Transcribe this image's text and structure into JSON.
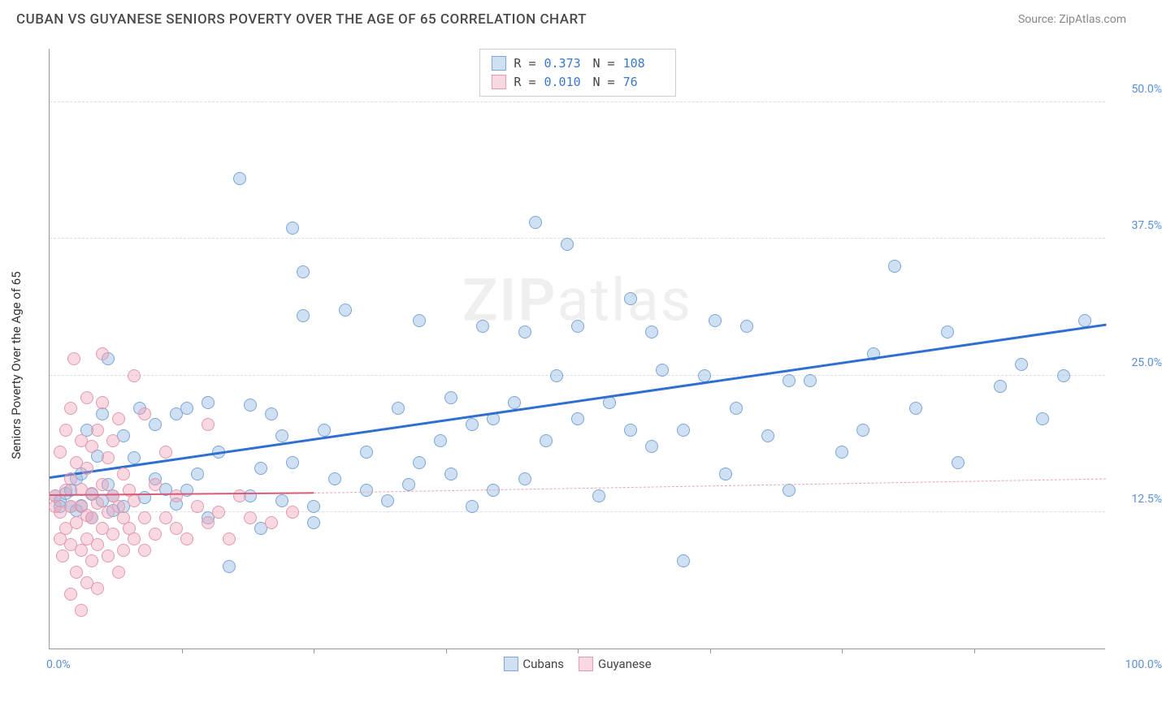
{
  "title": "CUBAN VS GUYANESE SENIORS POVERTY OVER THE AGE OF 65 CORRELATION CHART",
  "source_label": "Source: ZipAtlas.com",
  "ylabel": "Seniors Poverty Over the Age of 65",
  "watermark": {
    "bold": "ZIP",
    "rest": "atlas"
  },
  "chart": {
    "type": "scatter",
    "background_color": "#ffffff",
    "grid_color": "#dddddd",
    "axis_color": "#999999",
    "xlim": [
      0,
      100
    ],
    "ylim": [
      0,
      55
    ],
    "yticks": [
      {
        "v": 12.5,
        "label": "12.5%"
      },
      {
        "v": 25.0,
        "label": "25.0%"
      },
      {
        "v": 37.5,
        "label": "37.5%"
      },
      {
        "v": 50.0,
        "label": "50.0%"
      }
    ],
    "xticks": [
      {
        "v": 0,
        "label": "0.0%"
      },
      {
        "v": 100,
        "label": "100.0%"
      }
    ],
    "xtick_marks": [
      12.5,
      25,
      37.5,
      50,
      62.5,
      75,
      87.5
    ],
    "marker_radius": 8,
    "marker_border_width": 1.5,
    "series": [
      {
        "name": "Cubans",
        "fill": "rgba(151,187,229,0.45)",
        "stroke": "#7aa6d8",
        "R": "0.373",
        "N": "108",
        "trend": {
          "x1": 0,
          "y1": 15.5,
          "x2": 100,
          "y2": 29.5,
          "color": "#2f6fd0",
          "width": 3,
          "dash": false
        },
        "points": [
          [
            0.5,
            14
          ],
          [
            1,
            13.5
          ],
          [
            1,
            13
          ],
          [
            1.5,
            14.2
          ],
          [
            2,
            13
          ],
          [
            2,
            14.5
          ],
          [
            2.5,
            12.6
          ],
          [
            2.5,
            15.5
          ],
          [
            3,
            13.1
          ],
          [
            3,
            16.0
          ],
          [
            3.5,
            20.0
          ],
          [
            4,
            14.1
          ],
          [
            4,
            12.0
          ],
          [
            4.5,
            17.6
          ],
          [
            5,
            13.5
          ],
          [
            5,
            21.5
          ],
          [
            5.5,
            15.0
          ],
          [
            5.5,
            26.5
          ],
          [
            6,
            12.6
          ],
          [
            6,
            14.0
          ],
          [
            7,
            19.5
          ],
          [
            7,
            13.0
          ],
          [
            8,
            17.5
          ],
          [
            8.5,
            22.0
          ],
          [
            9,
            13.8
          ],
          [
            10,
            15.5
          ],
          [
            10,
            20.5
          ],
          [
            11,
            14.6
          ],
          [
            12,
            13.2
          ],
          [
            12,
            21.5
          ],
          [
            13,
            22.0
          ],
          [
            13,
            14.5
          ],
          [
            14,
            16.0
          ],
          [
            15,
            12.0
          ],
          [
            15,
            22.5
          ],
          [
            16,
            18.0
          ],
          [
            17,
            7.5
          ],
          [
            18,
            43.0
          ],
          [
            19,
            14.0
          ],
          [
            19,
            22.3
          ],
          [
            20,
            11.0
          ],
          [
            20,
            16.5
          ],
          [
            21,
            21.5
          ],
          [
            22,
            13.5
          ],
          [
            22,
            19.5
          ],
          [
            23,
            17.0
          ],
          [
            23,
            38.5
          ],
          [
            24,
            30.5
          ],
          [
            24,
            34.5
          ],
          [
            25,
            13.0
          ],
          [
            25,
            11.5
          ],
          [
            26,
            20.0
          ],
          [
            27,
            15.5
          ],
          [
            28,
            31.0
          ],
          [
            30,
            18.0
          ],
          [
            30,
            14.5
          ],
          [
            32,
            13.5
          ],
          [
            33,
            22.0
          ],
          [
            34,
            15.0
          ],
          [
            35,
            17.0
          ],
          [
            35,
            30.0
          ],
          [
            37,
            19.0
          ],
          [
            38,
            23.0
          ],
          [
            38,
            16.0
          ],
          [
            40,
            13.0
          ],
          [
            40,
            20.5
          ],
          [
            41,
            29.5
          ],
          [
            42,
            14.5
          ],
          [
            42,
            21.0
          ],
          [
            44,
            22.5
          ],
          [
            45,
            29.0
          ],
          [
            45,
            15.5
          ],
          [
            46,
            39.0
          ],
          [
            47,
            19.0
          ],
          [
            48,
            25.0
          ],
          [
            49,
            37.0
          ],
          [
            50,
            21.0
          ],
          [
            50,
            29.5
          ],
          [
            52,
            14.0
          ],
          [
            53,
            22.5
          ],
          [
            55,
            32.0
          ],
          [
            55,
            20.0
          ],
          [
            57,
            18.5
          ],
          [
            57,
            29.0
          ],
          [
            58,
            25.5
          ],
          [
            60,
            8.0
          ],
          [
            60,
            20.0
          ],
          [
            62,
            25.0
          ],
          [
            63,
            30.0
          ],
          [
            64,
            16.0
          ],
          [
            65,
            22.0
          ],
          [
            66,
            29.5
          ],
          [
            68,
            19.5
          ],
          [
            70,
            24.5
          ],
          [
            70,
            14.5
          ],
          [
            72,
            24.5
          ],
          [
            75,
            18.0
          ],
          [
            77,
            20.0
          ],
          [
            78,
            27.0
          ],
          [
            80,
            35.0
          ],
          [
            82,
            22.0
          ],
          [
            85,
            29.0
          ],
          [
            86,
            17.0
          ],
          [
            90,
            24.0
          ],
          [
            92,
            26.0
          ],
          [
            94,
            21.0
          ],
          [
            96,
            25.0
          ],
          [
            98,
            30.0
          ]
        ]
      },
      {
        "name": "Guyanese",
        "fill": "rgba(240,160,180,0.40)",
        "stroke": "#e39aae",
        "R": "0.010",
        "N": "76",
        "trend_solid": {
          "x1": 0,
          "y1": 14.0,
          "x2": 25,
          "y2": 14.2,
          "color": "#d85a7a",
          "width": 2,
          "dash": false
        },
        "trend_dash": {
          "x1": 25,
          "y1": 14.2,
          "x2": 100,
          "y2": 15.5,
          "color": "#e8a5b5",
          "width": 1.5,
          "dash": true
        },
        "points": [
          [
            0.5,
            13
          ],
          [
            0.5,
            14
          ],
          [
            1,
            10
          ],
          [
            1,
            12.5
          ],
          [
            1,
            18
          ],
          [
            1.2,
            8.5
          ],
          [
            1.5,
            11
          ],
          [
            1.5,
            14.5
          ],
          [
            1.5,
            20
          ],
          [
            2,
            5
          ],
          [
            2,
            9.5
          ],
          [
            2,
            13
          ],
          [
            2,
            15.5
          ],
          [
            2,
            22
          ],
          [
            2.3,
            26.5
          ],
          [
            2.5,
            7
          ],
          [
            2.5,
            11.5
          ],
          [
            2.5,
            17
          ],
          [
            3,
            3.5
          ],
          [
            3,
            9
          ],
          [
            3,
            13
          ],
          [
            3,
            14.6
          ],
          [
            3,
            19
          ],
          [
            3.5,
            6
          ],
          [
            3.5,
            10
          ],
          [
            3.5,
            12.2
          ],
          [
            3.5,
            16.5
          ],
          [
            3.5,
            23
          ],
          [
            4,
            8
          ],
          [
            4,
            12
          ],
          [
            4,
            14.2
          ],
          [
            4,
            18.5
          ],
          [
            4.5,
            5.5
          ],
          [
            4.5,
            9.5
          ],
          [
            4.5,
            13.3
          ],
          [
            4.5,
            20
          ],
          [
            5,
            11
          ],
          [
            5,
            15
          ],
          [
            5,
            22.5
          ],
          [
            5,
            27
          ],
          [
            5.5,
            8.5
          ],
          [
            5.5,
            12.5
          ],
          [
            5.5,
            17.5
          ],
          [
            6,
            10.5
          ],
          [
            6,
            14
          ],
          [
            6,
            19
          ],
          [
            6.5,
            7
          ],
          [
            6.5,
            13
          ],
          [
            6.5,
            21
          ],
          [
            7,
            9
          ],
          [
            7,
            12
          ],
          [
            7,
            16
          ],
          [
            7.5,
            11
          ],
          [
            7.5,
            14.5
          ],
          [
            8,
            10
          ],
          [
            8,
            13.5
          ],
          [
            8,
            25
          ],
          [
            9,
            9
          ],
          [
            9,
            12
          ],
          [
            9,
            21.5
          ],
          [
            10,
            10.5
          ],
          [
            10,
            15
          ],
          [
            11,
            12
          ],
          [
            11,
            18
          ],
          [
            12,
            11
          ],
          [
            12,
            14
          ],
          [
            13,
            10
          ],
          [
            14,
            13
          ],
          [
            15,
            11.5
          ],
          [
            15,
            20.5
          ],
          [
            16,
            12.5
          ],
          [
            17,
            10
          ],
          [
            18,
            14
          ],
          [
            19,
            12
          ],
          [
            21,
            11.5
          ],
          [
            23,
            12.5
          ]
        ]
      }
    ],
    "bottom_legend": [
      {
        "label": "Cubans",
        "fill": "rgba(151,187,229,0.45)",
        "stroke": "#7aa6d8"
      },
      {
        "label": "Guyanese",
        "fill": "rgba(240,160,180,0.40)",
        "stroke": "#e39aae"
      }
    ]
  }
}
